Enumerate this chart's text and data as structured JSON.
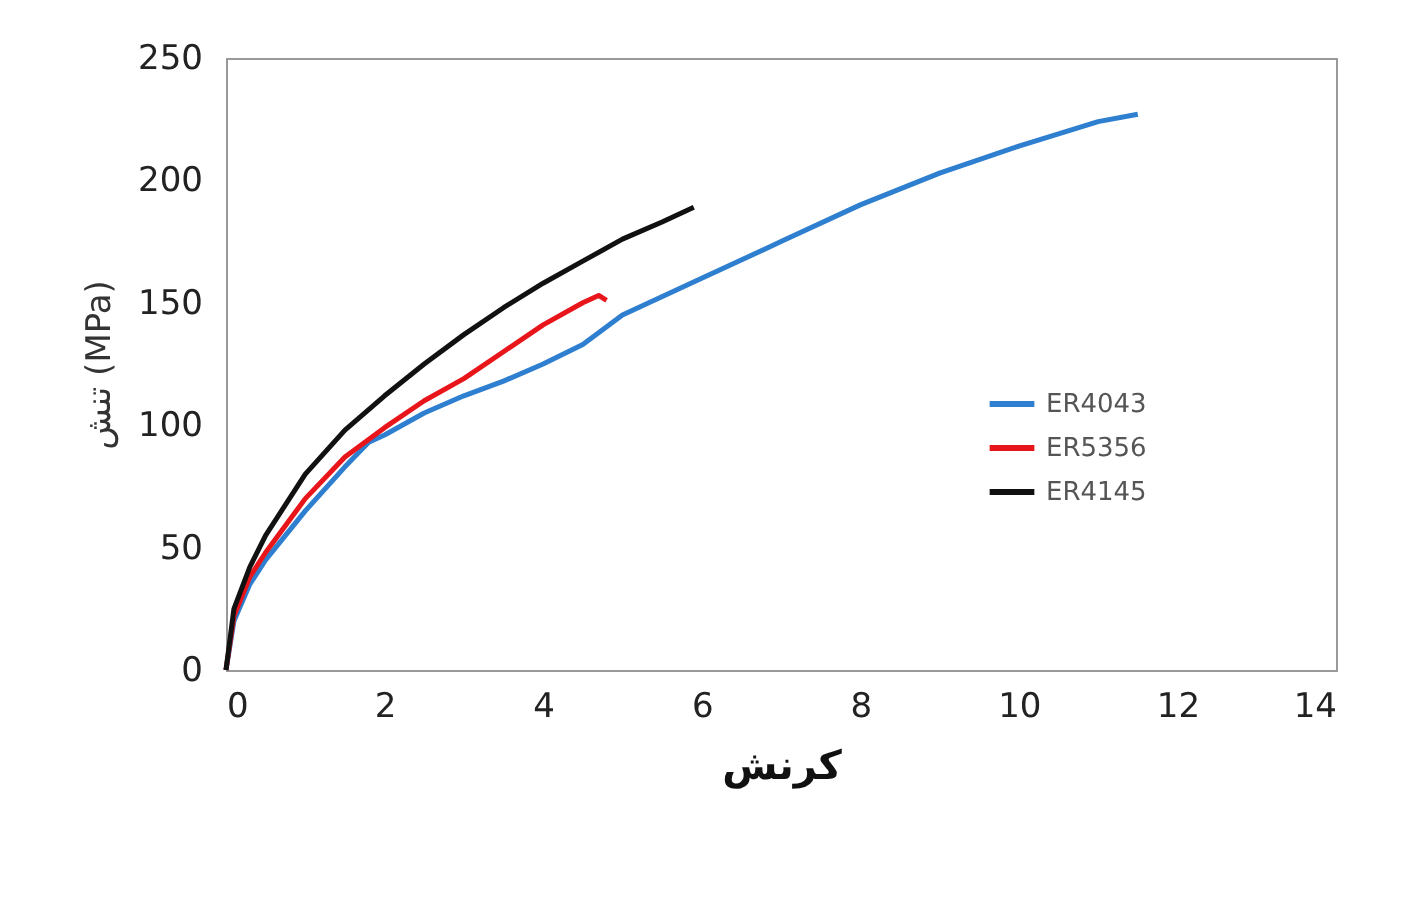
{
  "chart_data": {
    "type": "line",
    "xlabel": "کرنش",
    "ylabel": "تنش (MPa)",
    "xlim": [
      0,
      14
    ],
    "xticks": [
      0,
      2,
      4,
      6,
      8,
      10,
      12,
      14
    ],
    "ylim": [
      0,
      250
    ],
    "yticks": [
      0,
      50,
      100,
      150,
      200,
      250
    ],
    "grid": false,
    "legend": "right",
    "marker": "none",
    "line_style": "solid",
    "series": [
      {
        "name": "ER4043",
        "color": "#2e7fcf",
        "x": [
          0,
          0.1,
          0.3,
          0.5,
          1,
          1.5,
          1.8,
          2,
          2.5,
          3,
          3.5,
          4,
          4.5,
          5,
          6,
          7,
          8,
          9,
          10,
          11,
          11.5
        ],
        "values": [
          0,
          20,
          35,
          45,
          65,
          83,
          93,
          96,
          105,
          112,
          118,
          125,
          133,
          145,
          160,
          175,
          190,
          203,
          214,
          224,
          227
        ]
      },
      {
        "name": "ER5356",
        "color": "#e8161b",
        "x": [
          0,
          0.1,
          0.3,
          0.5,
          1,
          1.5,
          2,
          2.5,
          3,
          3.5,
          4,
          4.5,
          4.7,
          4.8
        ],
        "values": [
          0,
          22,
          38,
          48,
          70,
          87,
          99,
          110,
          119,
          130,
          141,
          150,
          153,
          151
        ]
      },
      {
        "name": "ER4145",
        "color": "#111111",
        "x": [
          0,
          0.1,
          0.3,
          0.5,
          1,
          1.5,
          2,
          2.5,
          3,
          3.5,
          4,
          4.5,
          5,
          5.5,
          5.9
        ],
        "values": [
          0,
          25,
          42,
          55,
          80,
          98,
          112,
          125,
          137,
          148,
          158,
          167,
          176,
          183,
          189
        ]
      }
    ]
  }
}
